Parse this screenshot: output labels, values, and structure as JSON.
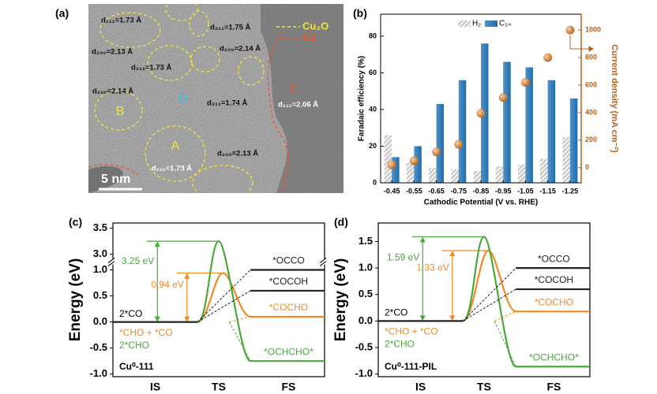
{
  "image_panel": {
    "panel_label": "(a)",
    "annotations": [
      "d₁₁₁=1.73 Å",
      "d₂₀₀=2.13 Å",
      "d₂₁₁=1.73 Å",
      "d₂₁₁=1.75 Å",
      "d₂₀₀=2.14 Å",
      "d₂₀₀=2.14 Å",
      "d₂₁₁=1.74 Å",
      "d₁₁₁=2.06 Å",
      "d₁₁₁=1.73 Å",
      "d₂₀₀=2.13 Å"
    ],
    "regions": [
      {
        "label": "A",
        "color": "#f2e33a"
      },
      {
        "label": "B",
        "color": "#f2e33a"
      },
      {
        "label": "C",
        "color": "#e8553a"
      },
      {
        "label": "D",
        "color": "#3ab8f0"
      }
    ],
    "legend": [
      {
        "name": "Cu₂O",
        "color": "#f2e33a"
      },
      {
        "name": "Cu",
        "color": "#e8553a"
      }
    ],
    "scale_bar": "5 nm"
  },
  "chart_data": [
    {
      "type": "bar",
      "panel_label": "(b)",
      "xlabel": "Cathodic Potential (V vs. RHE)",
      "ylabel": "Faradaic efficiency (%)",
      "y2label": "Current density (mA cm⁻²)",
      "categories": [
        "-0.45",
        "-0.55",
        "-0.65",
        "-0.75",
        "-0.85",
        "-0.95",
        "-1.05",
        "-1.15",
        "-1.25"
      ],
      "series": [
        {
          "name": "H₂",
          "color": "#9a9a9a",
          "pattern": "hatch",
          "values": [
            26,
            11,
            8,
            7.5,
            6.5,
            9,
            10,
            13,
            25
          ]
        },
        {
          "name": "C₂₊",
          "color": "#1c6db0",
          "values": [
            14,
            20,
            43,
            56,
            76,
            66,
            63,
            56,
            46
          ]
        },
        {
          "color": "#b5621c",
          "kind": "scatter",
          "axis": "y2",
          "values": [
            20,
            50,
            115,
            170,
            395,
            510,
            620,
            800,
            1000
          ]
        }
      ],
      "ylim": [
        0,
        92
      ],
      "yticks": [
        0,
        20,
        40,
        60,
        80
      ],
      "y2lim": [
        -110,
        1115
      ],
      "y2ticks": [
        0,
        200,
        400,
        600,
        800,
        1000
      ],
      "y2color": "#b5621c",
      "legend": "top"
    },
    {
      "type": "energy_profile",
      "panel_label": "(c)",
      "label": "Cu⁰-111",
      "ylabel": "Energy (eV)",
      "categories": [
        "IS",
        "TS",
        "FS"
      ],
      "ylim": [
        -1.05,
        3.6
      ],
      "axis_break": [
        1.15,
        2.85
      ],
      "yticks": [
        {
          "value": -1,
          "label": "-1.0"
        },
        {
          "value": -0.5,
          "label": "-0.5"
        },
        {
          "value": 0,
          "label": "0.0"
        },
        {
          "value": 0.5,
          "label": "0.5"
        },
        {
          "value": 1,
          "label": "1.0"
        },
        {
          "value": 3,
          "label": "3.0"
        },
        {
          "value": 3.5,
          "label": "3.5"
        }
      ],
      "initial": {
        "label": "2*CO",
        "value": 0
      },
      "pathways": [
        {
          "start": "*CHO + *CO",
          "end": "*COCHO",
          "color": "#f08a24",
          "barrier": 0.94,
          "barrier_label": "0.94 eV",
          "final": 0.1
        },
        {
          "start": "2*CHO",
          "end": "*OCHCHO*",
          "color": "#4aa83c",
          "barrier": 3.25,
          "barrier_label": "3.25 eV",
          "final": -0.75
        },
        {
          "end": "*COCOH",
          "color": "#222222",
          "final": 0.6
        },
        {
          "end": "*OCCO",
          "color": "#222222",
          "final": 1.0
        }
      ]
    },
    {
      "type": "energy_profile",
      "panel_label": "(d)",
      "label": "Cu⁰-111-PIL",
      "ylabel": "Energy (eV)",
      "categories": [
        "IS",
        "TS",
        "FS"
      ],
      "ylim": [
        -1.05,
        1.85
      ],
      "yticks": [
        {
          "value": -1,
          "label": "-1.0"
        },
        {
          "value": -0.5,
          "label": "-0.5"
        },
        {
          "value": 0,
          "label": "0.0"
        },
        {
          "value": 0.5,
          "label": "0.5"
        },
        {
          "value": 1,
          "label": "1.0"
        },
        {
          "value": 1.5,
          "label": "1.5"
        }
      ],
      "initial": {
        "label": "2*CO",
        "value": 0
      },
      "pathways": [
        {
          "start": "*CHO + *CO",
          "end": "*COCHO",
          "color": "#f08a24",
          "barrier": 1.33,
          "barrier_label": "1.33 eV",
          "final": 0.18
        },
        {
          "start": "2*CHO",
          "end": "*OCHCHO*",
          "color": "#4aa83c",
          "barrier": 1.59,
          "barrier_label": "1.59 eV",
          "final": -0.86
        },
        {
          "end": "*COCOH",
          "color": "#222222",
          "final": 0.6
        },
        {
          "end": "*OCCO",
          "color": "#222222",
          "final": 1.0
        }
      ]
    }
  ]
}
